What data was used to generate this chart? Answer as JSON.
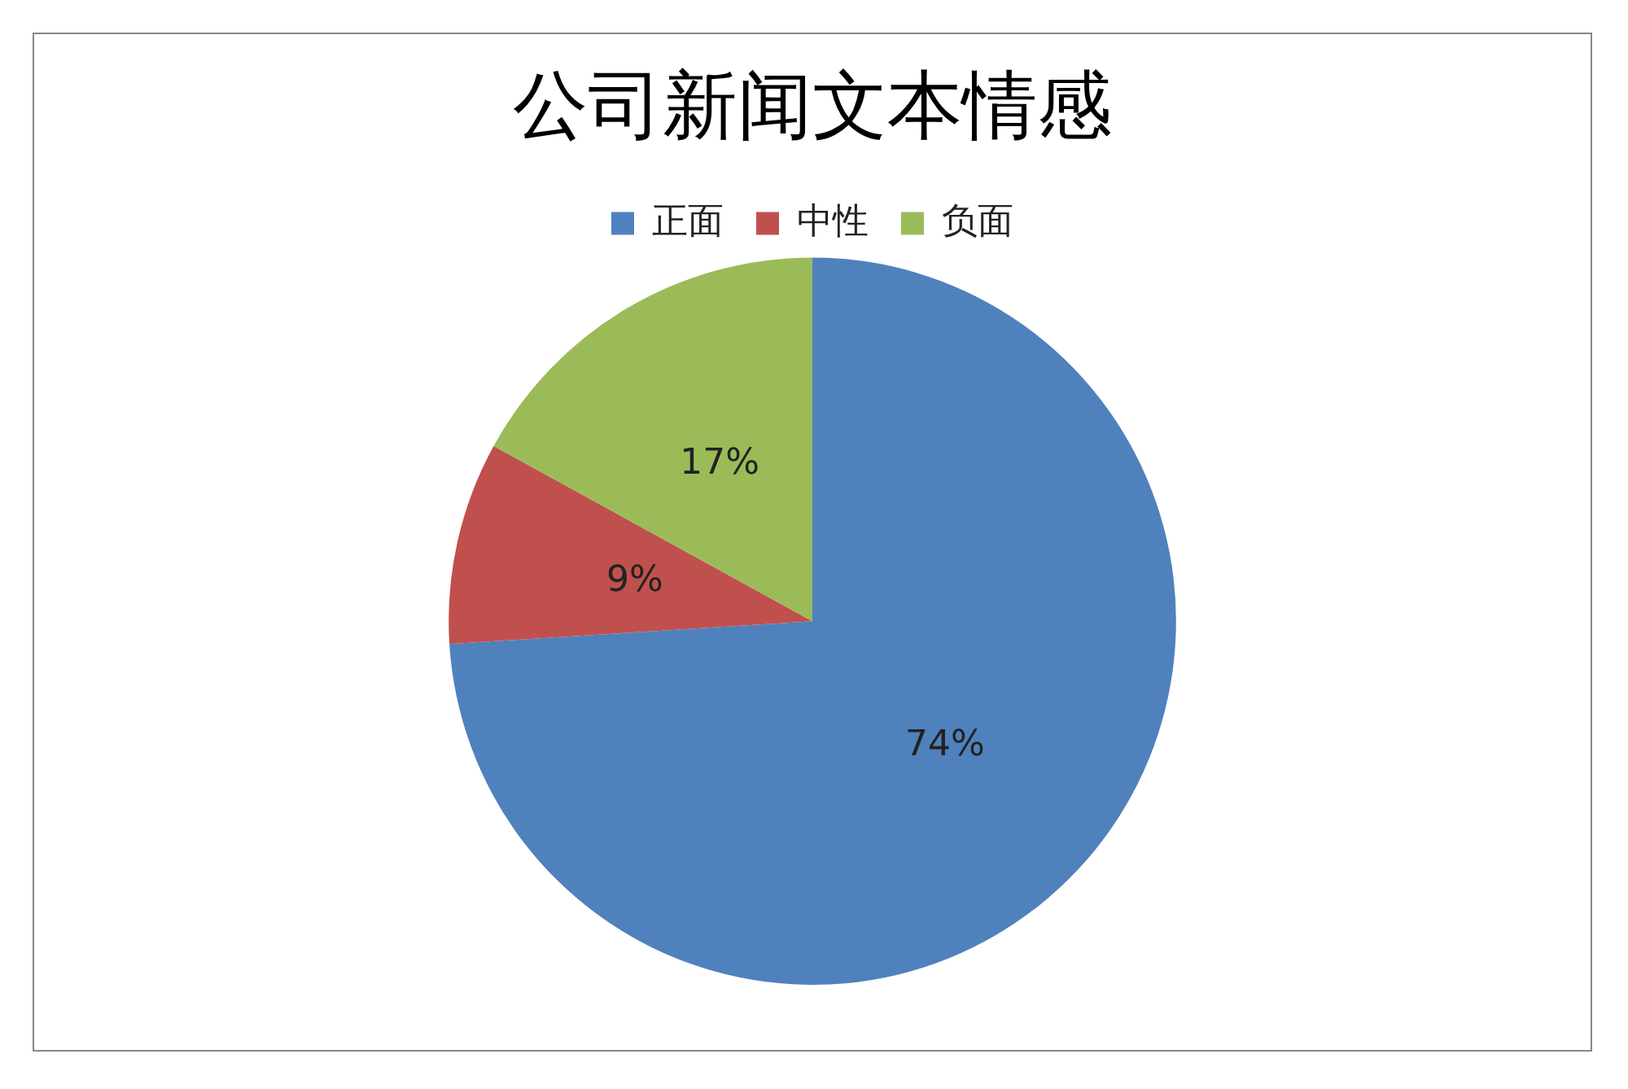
{
  "chart_data": {
    "type": "pie",
    "title": "公司新闻文本情感",
    "categories": [
      "正面",
      "中性",
      "负面"
    ],
    "values": [
      74,
      9,
      17
    ],
    "value_labels": [
      "74%",
      "9%",
      "17%"
    ],
    "colors": [
      "#4f81bd",
      "#c0504d",
      "#9bbb59"
    ],
    "legend": "top"
  }
}
